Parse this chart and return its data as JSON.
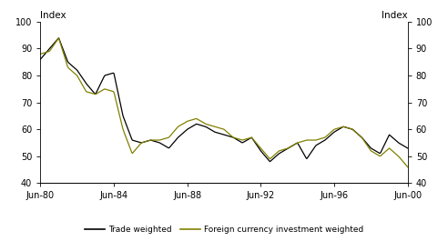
{
  "ylabel_left": "Index",
  "ylabel_right": "Index",
  "ylim": [
    40,
    100
  ],
  "yticks": [
    40,
    50,
    60,
    70,
    80,
    90,
    100
  ],
  "xtick_labels": [
    "Jun-80",
    "Jun-84",
    "Jun-88",
    "Jun-92",
    "Jun-96",
    "Jun-00"
  ],
  "xtick_pos": [
    1980.5,
    1984.5,
    1988.5,
    1992.5,
    1996.5,
    2000.5
  ],
  "xlim": [
    1980.5,
    2000.5
  ],
  "trade_color": "#000000",
  "invest_color": "#808000",
  "legend_trade": "Trade weighted",
  "legend_invest": "Foreign currency investment weighted",
  "background_color": "#ffffff",
  "trade_kp": [
    [
      1980.5,
      86
    ],
    [
      1981.0,
      90
    ],
    [
      1981.5,
      94
    ],
    [
      1982.0,
      85
    ],
    [
      1982.5,
      82
    ],
    [
      1983.0,
      77
    ],
    [
      1983.5,
      73
    ],
    [
      1984.0,
      80
    ],
    [
      1984.5,
      81
    ],
    [
      1985.0,
      65
    ],
    [
      1985.5,
      56
    ],
    [
      1986.0,
      55
    ],
    [
      1986.5,
      56
    ],
    [
      1987.0,
      55
    ],
    [
      1987.5,
      53
    ],
    [
      1988.0,
      57
    ],
    [
      1988.5,
      60
    ],
    [
      1989.0,
      62
    ],
    [
      1989.5,
      61
    ],
    [
      1990.0,
      59
    ],
    [
      1990.5,
      58
    ],
    [
      1991.0,
      57
    ],
    [
      1991.5,
      55
    ],
    [
      1992.0,
      57
    ],
    [
      1992.5,
      52
    ],
    [
      1993.0,
      48
    ],
    [
      1993.5,
      51
    ],
    [
      1994.0,
      53
    ],
    [
      1994.5,
      55
    ],
    [
      1995.0,
      49
    ],
    [
      1995.5,
      54
    ],
    [
      1996.0,
      56
    ],
    [
      1996.5,
      59
    ],
    [
      1997.0,
      61
    ],
    [
      1997.5,
      60
    ],
    [
      1998.0,
      57
    ],
    [
      1998.5,
      53
    ],
    [
      1999.0,
      51
    ],
    [
      1999.5,
      58
    ],
    [
      2000.0,
      55
    ],
    [
      2000.5,
      53
    ]
  ],
  "invest_kp": [
    [
      1980.5,
      88
    ],
    [
      1981.0,
      89
    ],
    [
      1981.5,
      94
    ],
    [
      1982.0,
      83
    ],
    [
      1982.5,
      80
    ],
    [
      1983.0,
      74
    ],
    [
      1983.5,
      73
    ],
    [
      1984.0,
      75
    ],
    [
      1984.5,
      74
    ],
    [
      1985.0,
      60
    ],
    [
      1985.5,
      51
    ],
    [
      1986.0,
      55
    ],
    [
      1986.5,
      56
    ],
    [
      1987.0,
      56
    ],
    [
      1987.5,
      57
    ],
    [
      1988.0,
      61
    ],
    [
      1988.5,
      63
    ],
    [
      1989.0,
      64
    ],
    [
      1989.5,
      62
    ],
    [
      1990.0,
      61
    ],
    [
      1990.5,
      60
    ],
    [
      1991.0,
      57
    ],
    [
      1991.5,
      56
    ],
    [
      1992.0,
      57
    ],
    [
      1992.5,
      53
    ],
    [
      1993.0,
      49
    ],
    [
      1993.5,
      52
    ],
    [
      1994.0,
      53
    ],
    [
      1994.5,
      55
    ],
    [
      1995.0,
      56
    ],
    [
      1995.5,
      56
    ],
    [
      1996.0,
      57
    ],
    [
      1996.5,
      60
    ],
    [
      1997.0,
      61
    ],
    [
      1997.5,
      60
    ],
    [
      1998.0,
      57
    ],
    [
      1998.5,
      52
    ],
    [
      1999.0,
      50
    ],
    [
      1999.5,
      53
    ],
    [
      2000.0,
      50
    ],
    [
      2000.5,
      46
    ]
  ],
  "line_width": 0.9,
  "tick_labelsize": 7,
  "legend_fontsize": 6.5,
  "label_fontsize": 7.5
}
